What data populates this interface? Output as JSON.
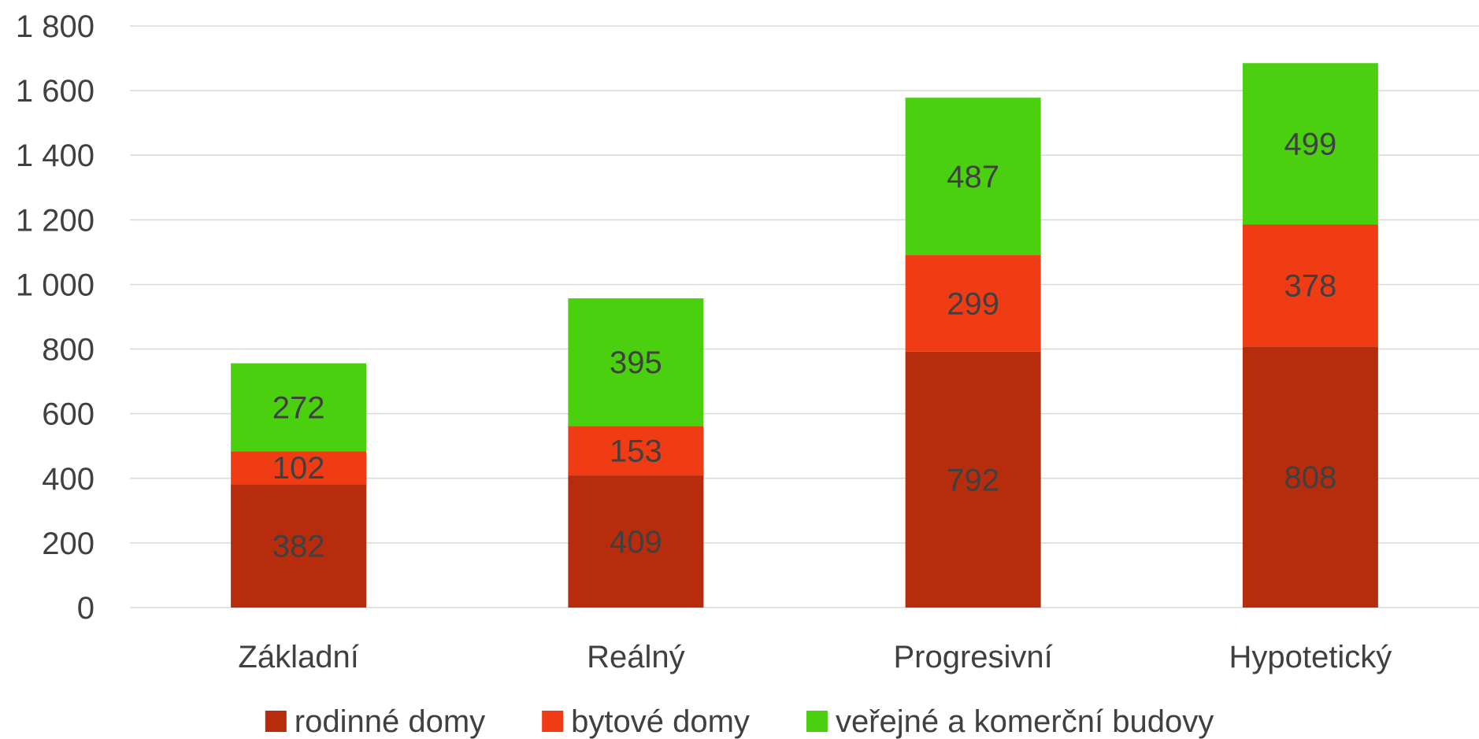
{
  "chart_data": {
    "type": "bar",
    "stacked": true,
    "categories": [
      "Základní",
      "Reálný",
      "Progresivní",
      "Hypotetický"
    ],
    "series": [
      {
        "name": "rodinné domy",
        "color": "#b72c0c",
        "values": [
          382,
          409,
          792,
          808
        ]
      },
      {
        "name": "bytové domy",
        "color": "#f03c14",
        "values": [
          102,
          153,
          299,
          378
        ]
      },
      {
        "name": "veřejné a komerční budovy",
        "color": "#4bd010",
        "values": [
          272,
          395,
          487,
          499
        ]
      }
    ],
    "yticks": [
      "0",
      "200",
      "400",
      "600",
      "800",
      "1 000",
      "1 200",
      "1 400",
      "1 600",
      "1 800"
    ],
    "ylim": [
      0,
      1800
    ],
    "grid": true,
    "legend": "bottom",
    "title": "",
    "xlabel": "",
    "ylabel": ""
  }
}
